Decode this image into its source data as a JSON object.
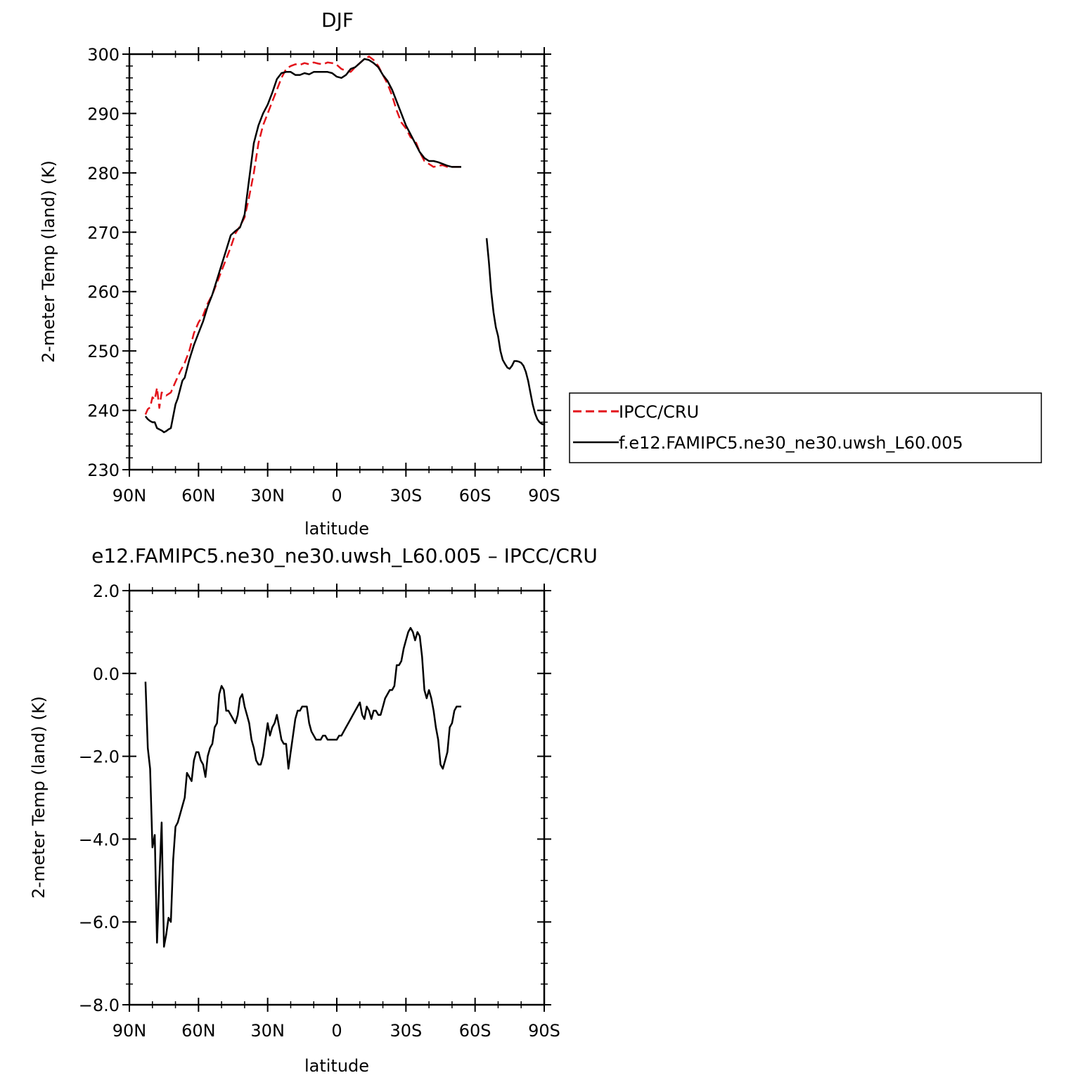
{
  "colors": {
    "obs": "#e3141b",
    "model": "#000000"
  },
  "x_tick_labels": [
    "90N",
    "60N",
    "30N",
    "0",
    "30S",
    "60S",
    "90S"
  ],
  "chart_data": [
    {
      "type": "line",
      "title": "DJF",
      "xlabel": "latitude",
      "ylabel": "2-meter Temp (land) (K)",
      "xlim": [
        -90,
        90
      ],
      "ylim": [
        230,
        300
      ],
      "yticks": [
        230,
        240,
        250,
        260,
        270,
        280,
        290,
        300
      ],
      "ytick_labels": [
        "230",
        "240",
        "250",
        "260",
        "270",
        "280",
        "290",
        "300"
      ],
      "grid": false,
      "legend_position": "right, outside plot",
      "series": [
        {
          "name": "IPCC/CRU",
          "style": "dashed",
          "x": [
            -83,
            -82,
            -81,
            -80,
            -79,
            -78,
            -77,
            -76,
            -75,
            -74,
            -72,
            -70,
            -68,
            -66,
            -64,
            -62,
            -60,
            -58,
            -56,
            -54,
            -52,
            -50,
            -48,
            -46,
            -44,
            -42,
            -40,
            -38,
            -36,
            -34,
            -32,
            -30,
            -28,
            -26,
            -24,
            -22,
            -20,
            -18,
            -16,
            -14,
            -12,
            -10,
            -8,
            -6,
            -4,
            -2,
            0,
            2,
            4,
            6,
            8,
            10,
            12,
            14,
            16,
            18,
            20,
            22,
            24,
            26,
            28,
            30,
            32,
            34,
            36,
            38,
            40,
            42,
            44,
            46,
            48,
            50,
            52,
            54,
            55
          ],
          "y": [
            239.3,
            240.2,
            240.5,
            242.2,
            241.8,
            243.8,
            240.4,
            243.0,
            242.8,
            242.5,
            243.0,
            244.8,
            246.5,
            248.0,
            250.0,
            253.0,
            254.8,
            256.0,
            258.0,
            259.5,
            261.5,
            263.5,
            265.5,
            267.5,
            269.8,
            271.0,
            272.5,
            276.0,
            280.0,
            285.0,
            288.0,
            290.0,
            292.0,
            294.0,
            296.0,
            297.5,
            298.0,
            298.3,
            298.2,
            298.5,
            298.3,
            298.6,
            298.4,
            298.3,
            298.6,
            298.5,
            298.2,
            297.5,
            297.2,
            297.0,
            297.8,
            298.5,
            299.2,
            299.6,
            299.0,
            298.0,
            296.5,
            295.0,
            293.0,
            290.5,
            288.5,
            287.5,
            286.0,
            285.5,
            283.5,
            282.0,
            281.5,
            281.0,
            281.2,
            281.3,
            281.0,
            281.0,
            281.0,
            281.0,
            281.0
          ]
        },
        {
          "name": "f.e12.FAMIPC5.ne30_ne30.uwsh_L60.005",
          "style": "solid",
          "segments": [
            {
              "x": [
                -83,
                -82,
                -81,
                -80,
                -79,
                -78,
                -77,
                -76,
                -75,
                -74,
                -73,
                -72,
                -71,
                -70,
                -69,
                -68,
                -67,
                -66,
                -64,
                -62,
                -60,
                -58,
                -56,
                -54,
                -52,
                -50,
                -48,
                -46,
                -44,
                -42,
                -40,
                -38,
                -36,
                -34,
                -32,
                -30,
                -28,
                -26,
                -24,
                -22,
                -20,
                -18,
                -16,
                -14,
                -12,
                -10,
                -8,
                -6,
                -4,
                -2,
                0,
                2,
                4,
                6,
                8,
                10,
                12,
                14,
                16,
                18,
                20,
                22,
                24,
                26,
                28,
                30,
                32,
                34,
                36,
                38,
                40,
                42,
                44,
                46,
                48,
                50,
                52,
                54
              ],
              "y": [
                239.0,
                238.5,
                238.2,
                238.0,
                238.0,
                237.0,
                236.8,
                236.6,
                236.3,
                236.5,
                236.8,
                237.0,
                239.0,
                241.0,
                242.0,
                243.5,
                245.0,
                245.5,
                248.5,
                251.0,
                253.0,
                255.0,
                257.5,
                259.5,
                262.0,
                264.5,
                267.0,
                269.5,
                270.2,
                270.8,
                273.0,
                279.0,
                285.0,
                288.0,
                290.0,
                291.5,
                293.5,
                295.8,
                296.8,
                297.0,
                297.0,
                296.5,
                296.5,
                296.8,
                296.6,
                297.0,
                297.0,
                297.0,
                297.0,
                296.8,
                296.2,
                296.0,
                296.5,
                297.5,
                297.8,
                298.5,
                299.2,
                299.0,
                298.5,
                297.8,
                296.5,
                295.5,
                294.0,
                292.0,
                290.0,
                288.0,
                286.5,
                285.0,
                283.5,
                282.5,
                282.0,
                282.0,
                281.8,
                281.5,
                281.2,
                281.0,
                281.0,
                281.0
              ]
            },
            {
              "x": [
                65,
                66,
                67,
                68,
                69,
                70,
                71,
                72,
                73,
                74,
                75,
                76,
                77,
                78,
                79,
                80,
                81,
                82,
                83,
                84,
                85,
                86,
                87,
                88,
                89,
                90
              ],
              "y": [
                269.0,
                265.0,
                260.0,
                256.5,
                254.0,
                252.5,
                250.0,
                248.5,
                247.8,
                247.2,
                247.0,
                247.5,
                248.3,
                248.3,
                248.2,
                248.0,
                247.5,
                246.5,
                245.0,
                243.0,
                241.0,
                239.5,
                238.5,
                238.0,
                237.7,
                237.6
              ]
            }
          ]
        }
      ]
    },
    {
      "type": "line",
      "title": "e12.FAMIPC5.ne30_ne30.uwsh_L60.005 – IPCC/CRU",
      "xlabel": "latitude",
      "ylabel": "2-meter Temp (land) (K)",
      "xlim": [
        -90,
        90
      ],
      "ylim": [
        -8,
        2
      ],
      "yticks": [
        -8,
        -6,
        -4,
        -2,
        0,
        2
      ],
      "ytick_labels": [
        "−8.0",
        "−6.0",
        "−4.0",
        "−2.0",
        "0.0",
        "2.0"
      ],
      "grid": false,
      "series": [
        {
          "name": "",
          "style": "solid",
          "x": [
            -83,
            -82,
            -81,
            -80,
            -79,
            -78,
            -77,
            -76,
            -75,
            -74,
            -73,
            -72,
            -71,
            -70,
            -69,
            -68,
            -66,
            -65,
            -64,
            -63,
            -62,
            -61,
            -60,
            -59,
            -58,
            -57,
            -56,
            -55,
            -54,
            -53,
            -52,
            -51,
            -50,
            -49,
            -48,
            -47,
            -46,
            -45,
            -44,
            -43,
            -42,
            -41,
            -40,
            -39,
            -38,
            -37,
            -36,
            -35,
            -34,
            -33,
            -32,
            -31,
            -30,
            -29,
            -28,
            -27,
            -26,
            -25,
            -24,
            -23,
            -22,
            -21,
            -20,
            -19,
            -18,
            -17,
            -16,
            -15,
            -14,
            -13,
            -12,
            -11,
            -10,
            -9,
            -8,
            -7,
            -6,
            -5,
            -4,
            -3,
            -2,
            -1,
            0,
            1,
            2,
            3,
            4,
            5,
            6,
            7,
            8,
            9,
            10,
            11,
            12,
            13,
            14,
            15,
            16,
            17,
            18,
            19,
            20,
            21,
            22,
            23,
            24,
            25,
            26,
            27,
            28,
            29,
            30,
            31,
            32,
            33,
            34,
            35,
            36,
            37,
            38,
            39,
            40,
            41,
            42,
            43,
            44,
            45,
            46,
            47,
            48,
            49,
            50,
            51,
            52,
            53,
            54
          ],
          "y": [
            -0.2,
            -1.8,
            -2.3,
            -4.2,
            -3.9,
            -6.5,
            -5.0,
            -3.6,
            -6.6,
            -6.3,
            -5.9,
            -6.0,
            -4.5,
            -3.7,
            -3.6,
            -3.4,
            -3.0,
            -2.4,
            -2.5,
            -2.6,
            -2.1,
            -1.9,
            -1.9,
            -2.1,
            -2.2,
            -2.5,
            -2.0,
            -1.8,
            -1.7,
            -1.3,
            -1.2,
            -0.5,
            -0.3,
            -0.4,
            -0.9,
            -0.9,
            -1.0,
            -1.1,
            -1.2,
            -1.0,
            -0.6,
            -0.5,
            -0.8,
            -1.0,
            -1.2,
            -1.6,
            -1.8,
            -2.1,
            -2.2,
            -2.2,
            -2.0,
            -1.6,
            -1.2,
            -1.5,
            -1.3,
            -1.2,
            -1.0,
            -1.3,
            -1.6,
            -1.7,
            -1.7,
            -2.3,
            -1.9,
            -1.5,
            -1.1,
            -0.9,
            -0.9,
            -0.8,
            -0.8,
            -0.8,
            -1.2,
            -1.4,
            -1.5,
            -1.6,
            -1.6,
            -1.6,
            -1.5,
            -1.5,
            -1.6,
            -1.6,
            -1.6,
            -1.6,
            -1.6,
            -1.5,
            -1.5,
            -1.4,
            -1.3,
            -1.2,
            -1.1,
            -1.0,
            -0.9,
            -0.8,
            -0.7,
            -1.0,
            -1.1,
            -0.8,
            -0.9,
            -1.1,
            -0.9,
            -0.9,
            -1.0,
            -1.0,
            -0.8,
            -0.6,
            -0.5,
            -0.4,
            -0.4,
            -0.3,
            0.2,
            0.2,
            0.3,
            0.6,
            0.8,
            1.0,
            1.1,
            1.0,
            0.8,
            1.0,
            0.9,
            0.4,
            -0.4,
            -0.6,
            -0.4,
            -0.6,
            -0.9,
            -1.3,
            -1.6,
            -2.2,
            -2.3,
            -2.1,
            -1.9,
            -1.3,
            -1.2,
            -0.9,
            -0.8,
            -0.8,
            -0.8
          ]
        }
      ]
    }
  ]
}
